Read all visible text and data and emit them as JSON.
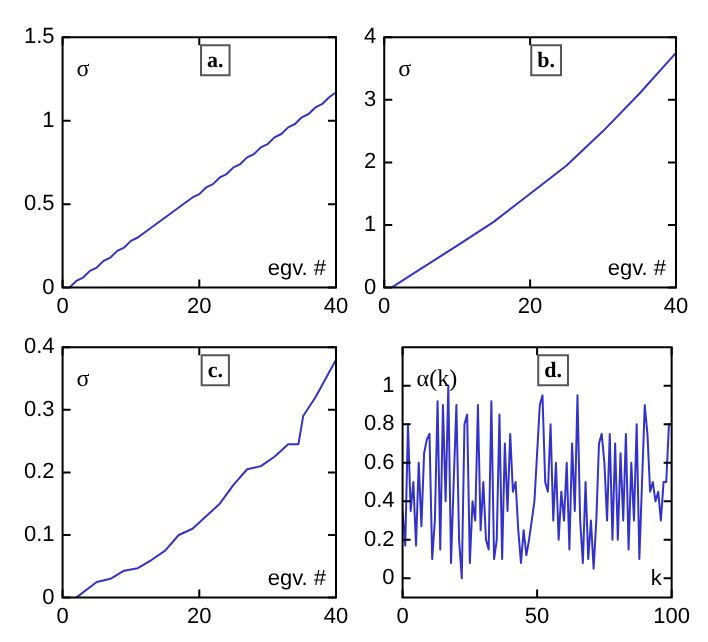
{
  "chart_data": [
    {
      "type": "line",
      "title": "a.",
      "ylabel": "σ",
      "xlabel": "egv. #",
      "xlim": [
        0,
        40
      ],
      "xticks": [
        0,
        20,
        40
      ],
      "ylim": [
        0,
        1.5
      ],
      "yticks": [
        0,
        0.5,
        1,
        1.5
      ],
      "grid": false,
      "legend": false,
      "marker": "none",
      "series": [
        {
          "color": "#3333cc",
          "x": [
            1,
            2,
            3,
            4,
            5,
            6,
            7,
            8,
            9,
            10,
            11,
            12,
            13,
            14,
            15,
            16,
            17,
            18,
            19,
            20,
            21,
            22,
            23,
            24,
            25,
            26,
            27,
            28,
            29,
            30,
            31,
            32,
            33,
            34,
            35,
            36,
            37,
            38,
            39,
            40
          ],
          "values": [
            0,
            0.04,
            0.06,
            0.1,
            0.12,
            0.16,
            0.18,
            0.22,
            0.24,
            0.28,
            0.3,
            0.33,
            0.36,
            0.39,
            0.42,
            0.45,
            0.48,
            0.51,
            0.54,
            0.56,
            0.6,
            0.62,
            0.66,
            0.68,
            0.72,
            0.74,
            0.78,
            0.8,
            0.84,
            0.86,
            0.9,
            0.92,
            0.96,
            0.98,
            1.02,
            1.04,
            1.08,
            1.1,
            1.14,
            1.17
          ]
        }
      ]
    },
    {
      "type": "line",
      "title": "b.",
      "ylabel": "σ",
      "xlabel": "egv. #",
      "xlim": [
        0,
        40
      ],
      "xticks": [
        0,
        20,
        40
      ],
      "ylim": [
        0,
        4
      ],
      "yticks": [
        0,
        1,
        2,
        3,
        4
      ],
      "grid": false,
      "legend": false,
      "marker": "none",
      "series": [
        {
          "color": "#3333cc",
          "x": [
            1,
            5,
            10,
            15,
            20,
            25,
            30,
            35,
            40
          ],
          "values": [
            0,
            0.3,
            0.67,
            1.05,
            1.5,
            1.95,
            2.5,
            3.1,
            3.75
          ]
        }
      ]
    },
    {
      "type": "line",
      "title": "c.",
      "ylabel": "σ",
      "xlabel": "egv. #",
      "xlim": [
        0,
        40
      ],
      "xticks": [
        0,
        20,
        40
      ],
      "ylim": [
        0,
        0.4
      ],
      "yticks": [
        0,
        0.1,
        0.2,
        0.3,
        0.4
      ],
      "grid": false,
      "legend": false,
      "marker": "none",
      "series": [
        {
          "color": "#3333cc",
          "x": [
            2,
            5,
            7,
            9,
            11,
            13,
            15,
            17,
            19,
            21,
            23,
            25,
            27,
            29,
            31,
            33,
            34.5,
            35.2,
            37,
            40
          ],
          "values": [
            0,
            0.025,
            0.03,
            0.043,
            0.047,
            0.06,
            0.075,
            0.1,
            0.11,
            0.13,
            0.15,
            0.18,
            0.205,
            0.21,
            0.225,
            0.245,
            0.245,
            0.29,
            0.32,
            0.38
          ]
        }
      ]
    },
    {
      "type": "line",
      "title": "d.",
      "ylabel": "α(k)",
      "xlabel": "k",
      "xlim": [
        0,
        100
      ],
      "xticks": [
        0,
        50,
        100
      ],
      "ylim": [
        -0.1,
        1.2
      ],
      "yticks": [
        0,
        0.2,
        0.4,
        0.6,
        0.8,
        1
      ],
      "grid": false,
      "legend": false,
      "marker": "none",
      "series": [
        {
          "color": "#3333cc",
          "x": [
            0,
            1,
            2,
            3,
            4,
            5,
            6,
            7,
            8,
            9,
            10,
            11,
            12,
            13,
            14,
            15,
            16,
            17,
            18,
            19,
            20,
            21,
            22,
            23,
            24,
            25,
            26,
            27,
            28,
            29,
            30,
            31,
            32,
            33,
            34,
            35,
            36,
            37,
            38,
            39,
            40,
            41,
            42,
            43,
            44,
            45,
            46,
            47,
            48,
            49,
            50,
            51,
            52,
            53,
            54,
            55,
            56,
            57,
            58,
            59,
            60,
            61,
            62,
            63,
            64,
            65,
            66,
            67,
            68,
            69,
            70,
            71,
            72,
            73,
            74,
            75,
            76,
            77,
            78,
            79,
            80,
            81,
            82,
            83,
            84,
            85,
            86,
            87,
            88,
            89,
            90,
            91,
            92,
            93,
            94,
            95,
            96,
            97,
            98,
            99,
            100
          ],
          "values": [
            0.35,
            0.17,
            0.8,
            0.35,
            0.5,
            0.17,
            0.6,
            0.27,
            0.65,
            0.72,
            0.75,
            0.1,
            0.3,
            0.92,
            0.15,
            0.9,
            0.4,
            1,
            0.08,
            0.5,
            0.9,
            0.2,
            0,
            0.8,
            0.85,
            0.08,
            0.4,
            0.3,
            0.9,
            0.25,
            0.5,
            0.2,
            0.15,
            0.92,
            0.1,
            0.2,
            0.85,
            0.1,
            0.7,
            0.35,
            0.75,
            0.45,
            0.5,
            0.25,
            0.08,
            0.25,
            0.12,
            0.2,
            0.3,
            0.4,
            0.65,
            0.9,
            0.95,
            0.5,
            0.45,
            0.8,
            0.3,
            0.6,
            0.2,
            0.45,
            0.3,
            0.6,
            0.15,
            0.7,
            0.35,
            0.95,
            0.3,
            0.08,
            0.5,
            0.1,
            0.3,
            0.05,
            0.3,
            0.7,
            0.75,
            0.6,
            0.3,
            0.75,
            0.2,
            0.7,
            0.2,
            0.65,
            0.3,
            0.75,
            0.15,
            0.6,
            0.3,
            0.8,
            0.1,
            0.5,
            0.9,
            0.75,
            0.45,
            0.5,
            0.4,
            0.45,
            0.3,
            0.5,
            0.5,
            0.8,
            0.8
          ]
        }
      ]
    }
  ]
}
